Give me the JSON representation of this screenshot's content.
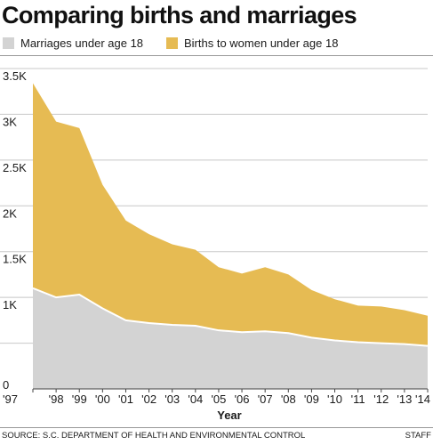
{
  "title": "Comparing births and marriages",
  "source": "SOURCE: S.C. DEPARTMENT OF HEALTH AND ENVIRONMENTAL CONTROL",
  "credit": "STAFF",
  "colors": {
    "marriages": "#d3d3d3",
    "births": "#e6bb53",
    "marriage_line": "#ffffff",
    "grid": "#c8c8c8"
  },
  "chart_data": {
    "type": "area",
    "stacked": true,
    "xlabel": "Year",
    "ylabel": "",
    "categories": [
      "'97",
      "'98",
      "'99",
      "'00",
      "'01",
      "'02",
      "'03",
      "'04",
      "'05",
      "'06",
      "'07",
      "'08",
      "'09",
      "'10",
      "'11",
      "'12",
      "'13",
      "'14"
    ],
    "ylim": [
      0,
      3500
    ],
    "yticks": [
      {
        "value": 0,
        "label": "0"
      },
      {
        "value": 500,
        "label": ""
      },
      {
        "value": 1000,
        "label": "1K"
      },
      {
        "value": 1500,
        "label": "1.5K"
      },
      {
        "value": 2000,
        "label": "2K"
      },
      {
        "value": 2500,
        "label": "2.5K"
      },
      {
        "value": 3000,
        "label": "3K"
      },
      {
        "value": 3500,
        "label": "3.5K"
      }
    ],
    "grid": true,
    "legend_position": "top",
    "series": [
      {
        "name": "Marriages under age 18",
        "values": [
          1100,
          1000,
          1030,
          880,
          750,
          720,
          700,
          690,
          640,
          620,
          630,
          610,
          560,
          530,
          510,
          500,
          490,
          470
        ]
      },
      {
        "name": "Births to women under age 18",
        "values": [
          2240,
          1920,
          1820,
          1350,
          1090,
          970,
          880,
          830,
          690,
          640,
          700,
          640,
          520,
          450,
          400,
          400,
          370,
          330
        ]
      }
    ]
  }
}
